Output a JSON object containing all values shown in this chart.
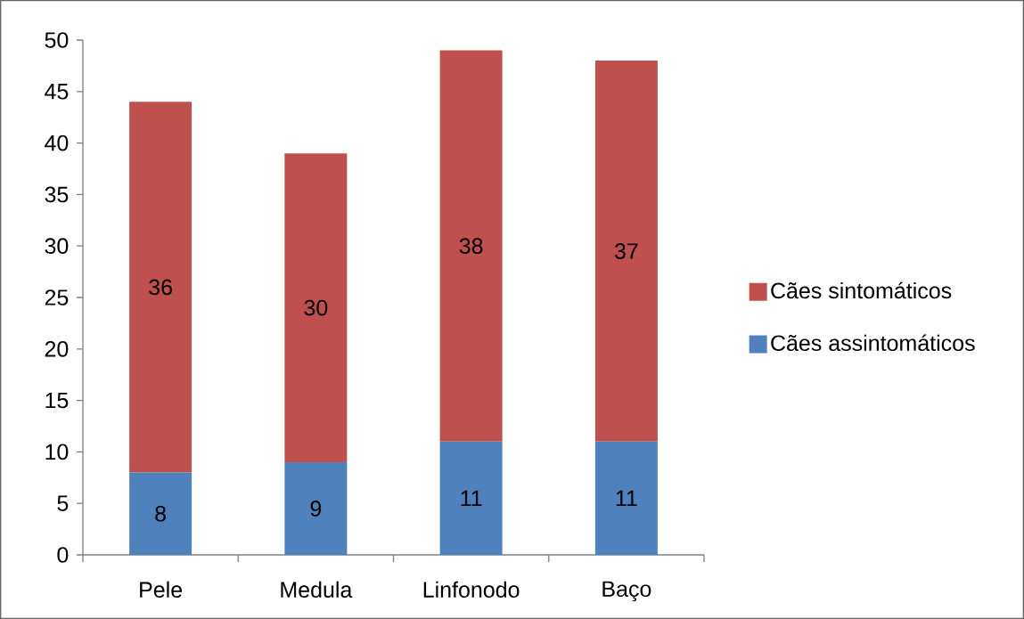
{
  "chart_data": {
    "type": "bar",
    "stacked": true,
    "categories": [
      "Pele",
      "Medula",
      "Linfonodo",
      "Baço"
    ],
    "series": [
      {
        "name": "Cães assintomáticos",
        "color": "#4f81bd",
        "values": [
          8,
          9,
          11,
          11
        ]
      },
      {
        "name": "Cães sintomáticos",
        "color": "#c0504d",
        "values": [
          36,
          30,
          38,
          37
        ]
      }
    ],
    "ylim": [
      0,
      50
    ],
    "yticks": [
      0,
      5,
      10,
      15,
      20,
      25,
      30,
      35,
      40,
      45,
      50
    ],
    "data_labels": true,
    "legend": "right"
  }
}
